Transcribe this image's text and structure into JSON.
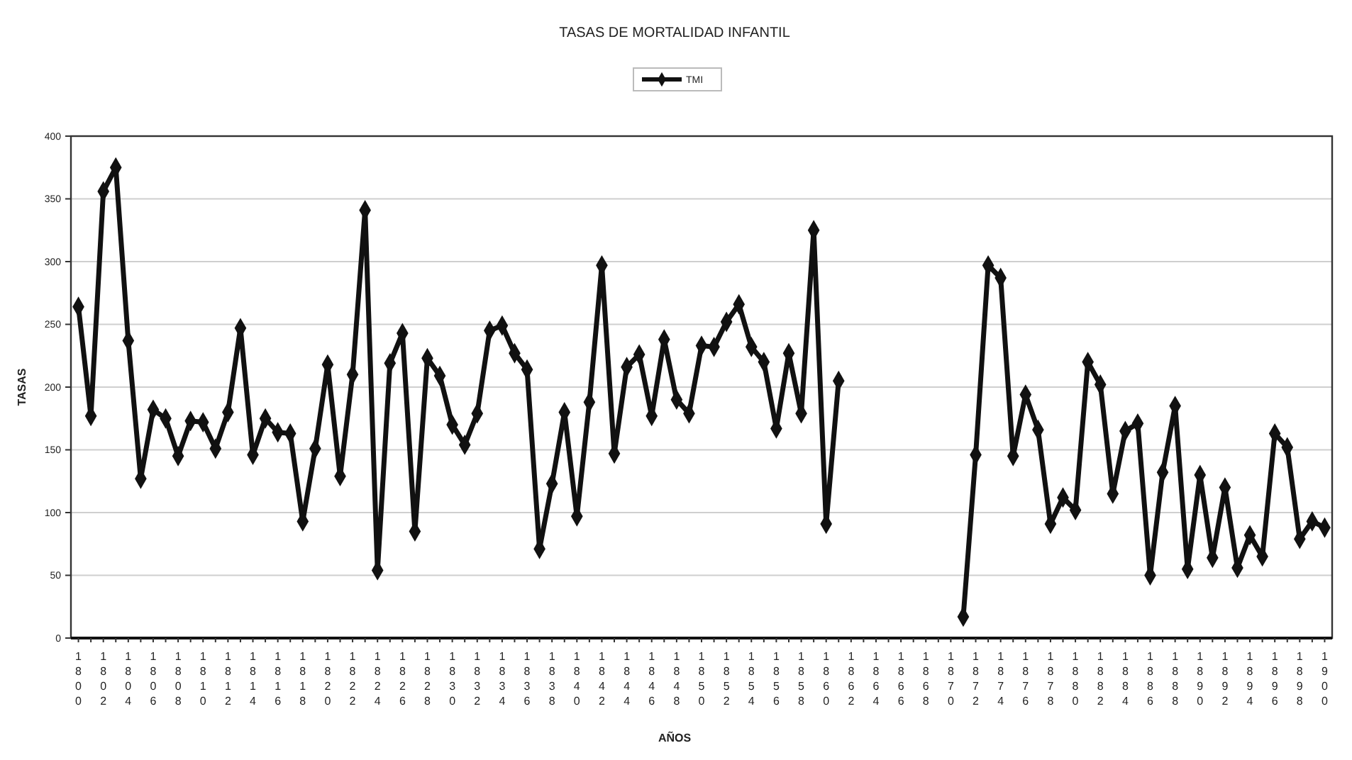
{
  "chart_data": {
    "type": "line",
    "title": "TASAS DE MORTALIDAD INFANTIL",
    "xlabel": "AÑOS",
    "ylabel": "TASAS",
    "categories": [
      "1800",
      null,
      "1802",
      null,
      "1804",
      null,
      "1806",
      null,
      "1808",
      null,
      "1810",
      null,
      "1812",
      null,
      "1814",
      null,
      "1816",
      null,
      "1818",
      null,
      "1820",
      null,
      "1822",
      null,
      "1824",
      null,
      "1826",
      null,
      "1828",
      null,
      "1830",
      null,
      "1832",
      null,
      "1834",
      null,
      "1836",
      null,
      "1838",
      null,
      "1840",
      null,
      "1842",
      null,
      "1844",
      null,
      "1846",
      null,
      "1848",
      null,
      "1850",
      null,
      "1852",
      null,
      "1854",
      null,
      "1856",
      null,
      "1858",
      null,
      "1860",
      null,
      "1862",
      null,
      "1864",
      null,
      "1866",
      null,
      "1868",
      null,
      "1870",
      null,
      "1872",
      null,
      "1874",
      null,
      "1876",
      null,
      "1878",
      null,
      "1880",
      null,
      "1882",
      null,
      "1884",
      null,
      "1886",
      null,
      "1888",
      null,
      "1890",
      null,
      "1892",
      null,
      "1894",
      null,
      "1896",
      null,
      "1898",
      null,
      "1900"
    ],
    "series": [
      {
        "name": "TMI",
        "color": "#111111",
        "values": [
          264,
          177,
          356,
          375,
          237,
          127,
          182,
          175,
          145,
          173,
          172,
          151,
          180,
          247,
          146,
          175,
          164,
          163,
          93,
          151,
          218,
          129,
          210,
          341,
          54,
          219,
          243,
          85,
          223,
          209,
          170,
          154,
          179,
          245,
          249,
          227,
          214,
          71,
          123,
          180,
          97,
          188,
          297,
          147,
          216,
          226,
          177,
          238,
          190,
          179,
          233,
          232,
          252,
          266,
          232,
          220,
          167,
          227,
          179,
          325,
          91,
          205,
          null,
          null,
          null,
          null,
          null,
          null,
          null,
          null,
          null,
          17,
          146,
          297,
          287,
          145,
          194,
          166,
          91,
          112,
          102,
          220,
          202,
          115,
          165,
          171,
          50,
          132,
          185,
          55,
          130,
          64,
          120,
          56,
          82,
          65,
          163,
          152,
          79,
          93,
          88
        ]
      }
    ],
    "ylim": [
      0,
      400
    ],
    "yticks": [
      0,
      50,
      100,
      150,
      200,
      250,
      300,
      350,
      400
    ],
    "grid": "y",
    "legend": "top",
    "marker": "diamond",
    "line_style": "solid"
  }
}
